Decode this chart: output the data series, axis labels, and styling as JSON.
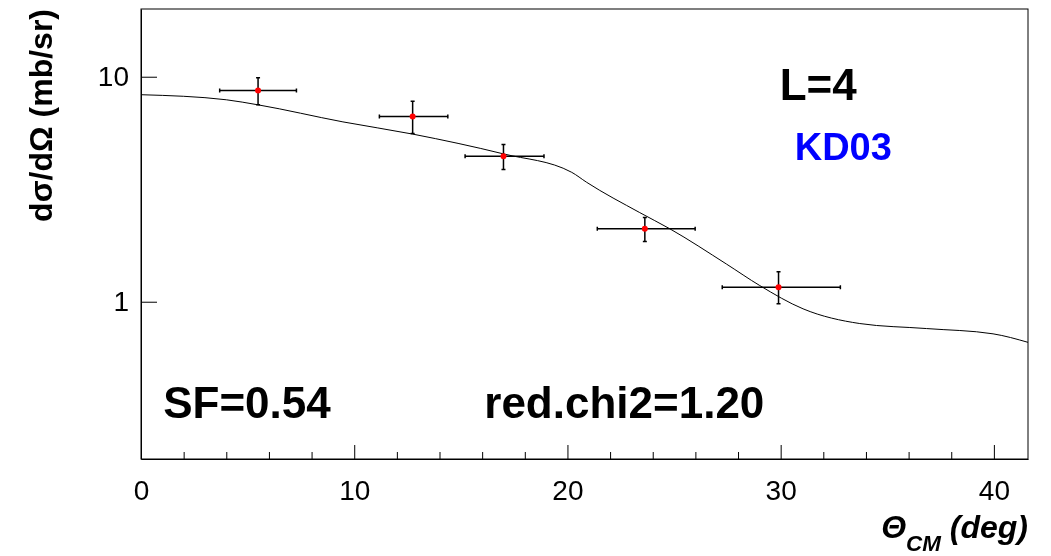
{
  "chart_data": {
    "type": "scatter",
    "xlabel": "Θ$_{CM}$ (deg)",
    "ylabel": "dσ/dΩ (mb/sr)",
    "log": "y",
    "xlim": [
      0,
      41.6
    ],
    "ylim": [
      0.2,
      20
    ],
    "xticks": [
      0,
      {
        "value": 2,
        "label": null
      },
      {
        "value": 4,
        "label": null
      },
      {
        "value": 6,
        "label": null
      },
      {
        "value": 8,
        "label": null
      },
      10,
      {
        "value": 12,
        "label": null
      },
      {
        "value": 14,
        "label": null
      },
      {
        "value": 16,
        "label": null
      },
      {
        "value": 18,
        "label": null
      },
      20,
      {
        "value": 22,
        "label": null
      },
      {
        "value": 24,
        "label": null
      },
      {
        "value": 26,
        "label": null
      },
      {
        "value": 28,
        "label": null
      },
      30,
      {
        "value": 32,
        "label": null
      },
      {
        "value": 34,
        "label": null
      },
      {
        "value": 36,
        "label": null
      },
      {
        "value": 38,
        "label": null
      },
      40
    ],
    "yticks": [
      1,
      10
    ],
    "grid": false,
    "legend": false,
    "series": [
      {
        "type": "line",
        "color": "#000000",
        "marker": "none",
        "x": [
          0,
          4.0,
          5.49,
          9.47,
          12.74,
          17.0,
          20.2,
          20.89,
          23.39,
          24.8,
          27.46,
          29.02,
          31.05,
          33.71,
          36.84,
          39.96,
          41.6
        ],
        "values": [
          8.32,
          7.9,
          7.5,
          6.3,
          5.56,
          4.54,
          3.76,
          3.4,
          2.49,
          2.11,
          1.47,
          1.18,
          0.93,
          0.8,
          0.76,
          0.72,
          0.66
        ]
      },
      {
        "color": "#ff0000",
        "marker": "circle",
        "x": [
          5.49,
          12.74,
          17.0,
          23.63,
          29.9
        ],
        "values": [
          8.69,
          6.66,
          4.43,
          2.11,
          1.16
        ],
        "errors": [
          [
            7.5,
            9.9
          ],
          [
            5.6,
            7.78
          ],
          [
            3.87,
            5.0
          ],
          [
            1.85,
            2.37
          ],
          [
            0.98,
            1.36
          ]
        ],
        "xerrors": [
          [
            3.69,
            7.29
          ],
          [
            11.18,
            14.39
          ],
          [
            15.2,
            18.9
          ],
          [
            21.4,
            25.99
          ],
          [
            27.26,
            32.8
          ]
        ]
      }
    ],
    "annotations": [
      "L=4",
      "KD03",
      "SF=0.54",
      "red.chi2=1.20"
    ]
  }
}
